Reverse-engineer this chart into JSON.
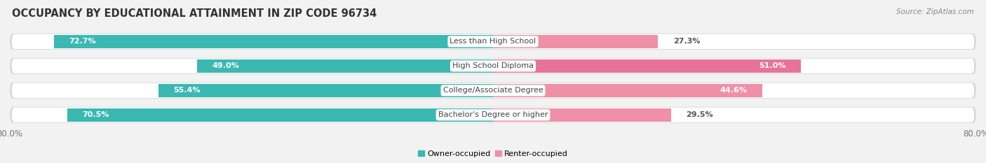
{
  "title": "OCCUPANCY BY EDUCATIONAL ATTAINMENT IN ZIP CODE 96734",
  "source": "Source: ZipAtlas.com",
  "categories": [
    "Less than High School",
    "High School Diploma",
    "College/Associate Degree",
    "Bachelor's Degree or higher"
  ],
  "owner_values": [
    72.7,
    49.0,
    55.4,
    70.5
  ],
  "renter_values": [
    27.3,
    51.0,
    44.6,
    29.5
  ],
  "owner_color": "#3bb8b2",
  "renter_color": "#f08fa8",
  "renter_color_dark": "#e8739a",
  "owner_label": "Owner-occupied",
  "renter_label": "Renter-occupied",
  "bar_height": 0.62,
  "xlim_left": -80,
  "xlim_right": 80,
  "background_color": "#f2f2f2",
  "bar_bg_color": "#ffffff",
  "bar_bg_shadow": "#d8d8d8",
  "title_fontsize": 10.5,
  "source_fontsize": 7.5,
  "label_fontsize": 8,
  "tick_fontsize": 8.5,
  "category_fontsize": 8
}
